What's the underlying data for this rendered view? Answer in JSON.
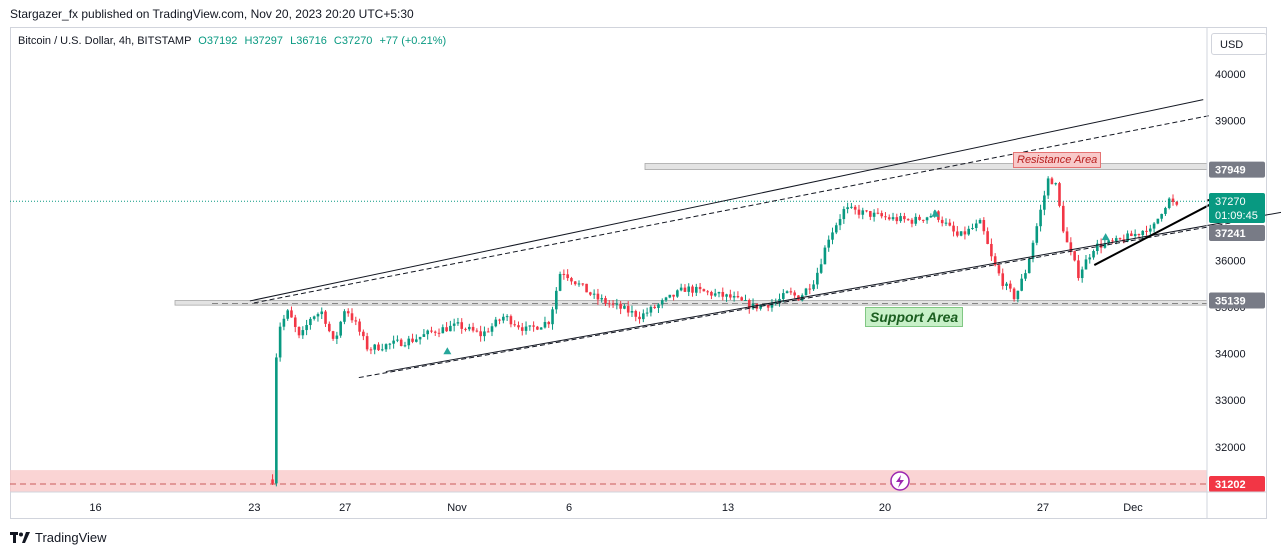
{
  "header": {
    "text": "Stargazer_fx published on TradingView.com, Nov 20, 2023 20:20 UTC+5:30"
  },
  "legend": {
    "symbol": "Bitcoin / U.S. Dollar, 4h, BITSTAMP",
    "open": "O37192",
    "high": "H37297",
    "low": "L36716",
    "close": "C37270",
    "change": "+77 (+0.21%)"
  },
  "currency_button": "USD",
  "footer": {
    "brand": "TradingView"
  },
  "annotations": {
    "resistance": "Resistance Area",
    "support": "Support Area"
  },
  "price_tags": {
    "resistance": "37949",
    "current": "37270",
    "countdown": "01:09:45",
    "previous": "37241",
    "support": "35139",
    "bottom": "31202"
  },
  "colors": {
    "up": "#089981",
    "down": "#f23645",
    "resistance_zone": "#d9d9d9",
    "bottom_zone": "#f8c6c6",
    "support_label": "#c8f0c8",
    "resistance_label": "#f8c9c9"
  },
  "chart_data": {
    "type": "candlestick",
    "y_axis": {
      "ticks": [
        40000,
        39000,
        38000,
        37000,
        36000,
        35000,
        34000,
        33000,
        32000
      ],
      "position": "right",
      "range": [
        31000,
        40500
      ]
    },
    "x_axis": {
      "labels": [
        "16",
        "23",
        "27",
        "Nov",
        "6",
        "13",
        "20",
        "27",
        "Dec"
      ]
    },
    "grid": false,
    "levels": {
      "resistance_area": [
        37949,
        38080
      ],
      "support_area": [
        35139,
        35040
      ],
      "bottom_zone": [
        31000,
        31500
      ],
      "bottom_line": 31202,
      "current_price": 37270
    },
    "close_path": [
      [
        23.8,
        31300
      ],
      [
        24,
        34500
      ],
      [
        24.5,
        34900
      ],
      [
        25,
        34300
      ],
      [
        25.5,
        34800
      ],
      [
        26,
        34900
      ],
      [
        26.5,
        34200
      ],
      [
        27,
        35000
      ],
      [
        27.5,
        34600
      ],
      [
        28,
        34100
      ],
      [
        29,
        34200
      ],
      [
        30,
        34300
      ],
      [
        31,
        34500
      ],
      [
        32,
        34600
      ],
      [
        33,
        34400
      ],
      [
        34,
        34800
      ],
      [
        35,
        34500
      ],
      [
        36,
        34700
      ],
      [
        36.5,
        35800
      ],
      [
        37,
        35600
      ],
      [
        38,
        35200
      ],
      [
        39,
        35000
      ],
      [
        40,
        34800
      ],
      [
        41,
        35100
      ],
      [
        42,
        35400
      ],
      [
        43,
        35300
      ],
      [
        44,
        35200
      ],
      [
        45,
        35000
      ],
      [
        46,
        35100
      ],
      [
        46.5,
        35300
      ],
      [
        47,
        35200
      ],
      [
        47.7,
        35600
      ],
      [
        48.3,
        36500
      ],
      [
        49,
        37100
      ],
      [
        50,
        37000
      ],
      [
        51,
        36900
      ],
      [
        52,
        36850
      ],
      [
        53,
        37000
      ],
      [
        54,
        36500
      ],
      [
        55,
        36800
      ],
      [
        55.5,
        36000
      ],
      [
        56,
        35500
      ],
      [
        56.5,
        35200
      ],
      [
        57,
        35800
      ],
      [
        57.5,
        36800
      ],
      [
        58,
        37800
      ],
      [
        58.3,
        37600
      ],
      [
        58.7,
        36500
      ],
      [
        59.3,
        35700
      ],
      [
        60,
        36300
      ],
      [
        61,
        36400
      ],
      [
        62,
        36600
      ],
      [
        62.3,
        36700
      ],
      [
        62.5,
        36600
      ],
      [
        63,
        37100
      ],
      [
        63.3,
        37300
      ],
      [
        63.7,
        37100
      ]
    ],
    "channel_upper": [
      [
        22.8,
        35130
      ],
      [
        48,
        37600
      ],
      [
        64.8,
        39450
      ]
    ],
    "channel_lower": [
      [
        27.6,
        33550
      ],
      [
        62,
        35960
      ],
      [
        68.8,
        37080
      ]
    ],
    "arrow": {
      "from": [
        60,
        35900
      ],
      "to": [
        65.5,
        37300
      ]
    },
    "signal_markers": [
      [
        31.5,
        34050
      ],
      [
        53,
        37000
      ],
      [
        60.5,
        36500
      ]
    ]
  }
}
